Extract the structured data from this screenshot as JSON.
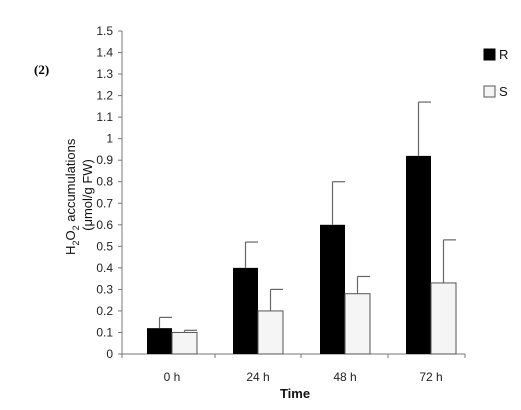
{
  "panel_label": "(2)",
  "chart_data": {
    "type": "bar",
    "xlabel": "Time",
    "ylabel_line1_prefix": "H",
    "ylabel_line1_sub1": "2",
    "ylabel_line1_mid": "O",
    "ylabel_line1_sub2": "2",
    "ylabel_line1_suffix": " accumulations",
    "ylabel_line2": "(μmol/g FW)",
    "ylim": [
      0,
      1.5
    ],
    "yticks": [
      "0",
      "0.1",
      "0.2",
      "0.3",
      "0.4",
      "0.5",
      "0.6",
      "0.7",
      "0.8",
      "0.9",
      "1",
      "1.1",
      "1.2",
      "1.3",
      "1.4",
      "1.5"
    ],
    "categories": [
      "0 h",
      "24 h",
      "48 h",
      "72 h"
    ],
    "legend_position": "right",
    "series": [
      {
        "name": "R",
        "color": "#000000",
        "values": [
          0.12,
          0.4,
          0.6,
          0.92
        ],
        "errors": [
          0.05,
          0.12,
          0.2,
          0.25
        ]
      },
      {
        "name": "S",
        "color": "#f5f5f5",
        "values": [
          0.1,
          0.2,
          0.28,
          0.33
        ],
        "errors": [
          0.01,
          0.1,
          0.08,
          0.2
        ]
      }
    ]
  }
}
